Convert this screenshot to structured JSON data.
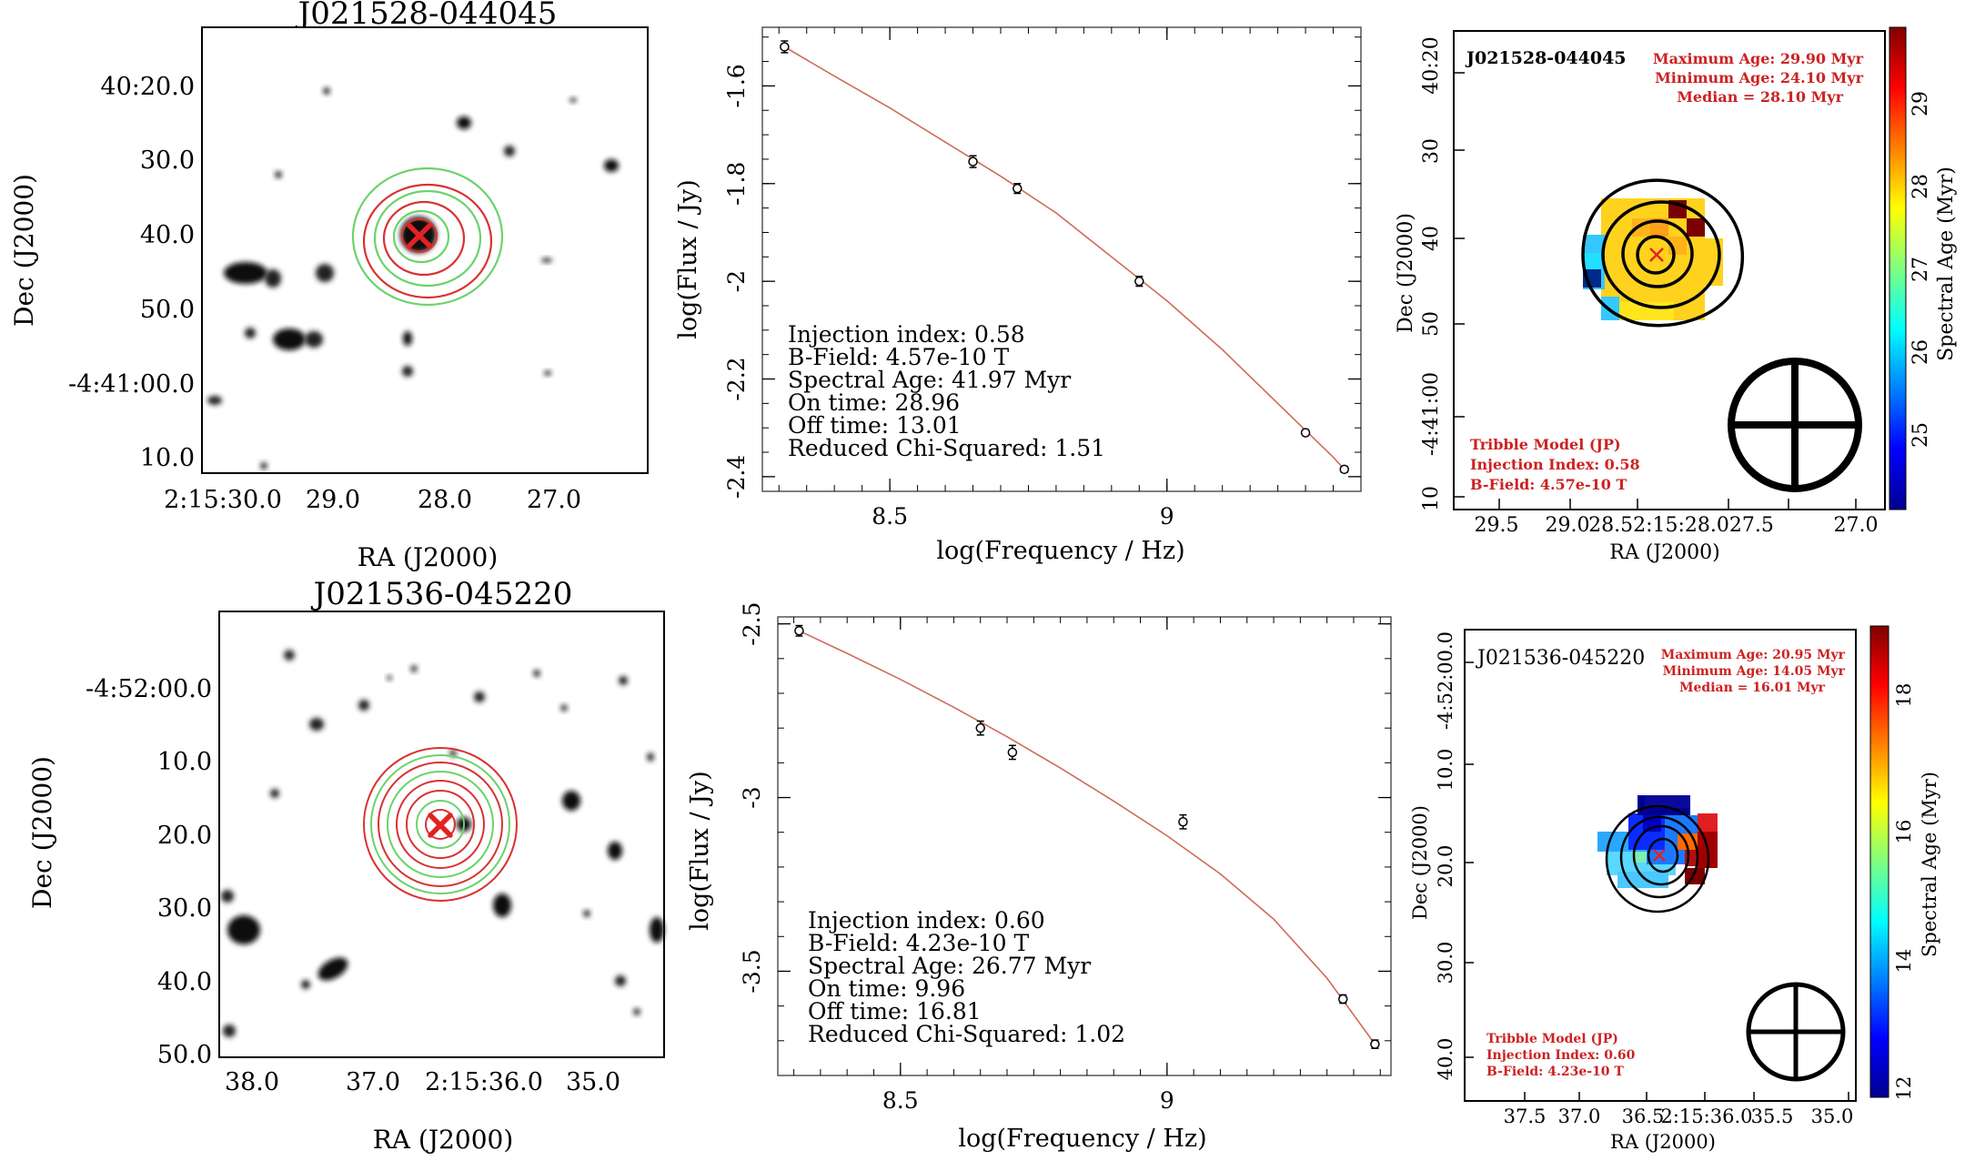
{
  "panels": [
    {
      "source": "J021528-044045",
      "image": {
        "title": "J021528-044045",
        "xlabel": "RA (J2000)",
        "ylabel": "Dec (J2000)",
        "xticks": [
          "2:15:30.0",
          "29.0",
          "28.0",
          "27.0"
        ],
        "yticks": [
          "40:20.0",
          "30.0",
          "40.0",
          "50.0",
          "-4:41:00.0",
          "10.0"
        ]
      },
      "sed": {
        "type": "line",
        "xlabel": "log(Frequency / Hz)",
        "ylabel": "log(Flux / Jy)",
        "xlim": [
          8.27,
          9.35
        ],
        "ylim": [
          -2.43,
          -1.48
        ],
        "xticks": [
          8.5,
          9
        ],
        "yticks": [
          -1.6,
          -1.8,
          -2,
          -2.2,
          -2.4
        ],
        "xtick_labels": [
          "8.5",
          "9"
        ],
        "ytick_labels": [
          "-1.6",
          "-1.8",
          "-2",
          "-2.2",
          "-2.4"
        ],
        "points": [
          {
            "x": 8.31,
            "y": -1.52,
            "err": 0.012
          },
          {
            "x": 8.65,
            "y": -1.755,
            "err": 0.012
          },
          {
            "x": 8.73,
            "y": -1.81,
            "err": 0.01
          },
          {
            "x": 8.95,
            "y": -2.0,
            "err": 0.01
          },
          {
            "x": 9.25,
            "y": -2.31,
            "err": 0.006
          },
          {
            "x": 9.32,
            "y": -2.385,
            "err": 0.006
          }
        ],
        "fit": [
          [
            8.31,
            -1.52
          ],
          [
            8.4,
            -1.58
          ],
          [
            8.5,
            -1.645
          ],
          [
            8.6,
            -1.715
          ],
          [
            8.7,
            -1.785
          ],
          [
            8.8,
            -1.86
          ],
          [
            8.9,
            -1.95
          ],
          [
            9.0,
            -2.04
          ],
          [
            9.1,
            -2.14
          ],
          [
            9.2,
            -2.25
          ],
          [
            9.3,
            -2.36
          ],
          [
            9.32,
            -2.385
          ]
        ],
        "fit_params": [
          "Injection index: 0.58",
          "B-Field: 4.57e-10 T",
          "Spectral Age: 41.97 Myr",
          "On time: 28.96",
          "Off time: 13.01",
          "Reduced Chi-Squared: 1.51"
        ]
      },
      "agemap": {
        "source_label": "J021528-044045",
        "stats": [
          "Maximum Age: 29.90 Myr",
          "Minimum Age: 24.10 Myr",
          "Median = 28.10 Myr"
        ],
        "model": [
          "Tribble Model (JP)",
          "Injection Index: 0.58",
          "B-Field: 4.57e-10 T"
        ],
        "xlabel": "RA (J2000)",
        "ylabel": "Dec (J2000)",
        "xticks": [
          "29.5",
          "29.0",
          "28.52:15:28.027.5",
          "27.0"
        ],
        "yticks": [
          "40:20",
          "30",
          "40",
          "50",
          "-4:41:00",
          "10"
        ],
        "colorbar_label": "Spectral Age (Myr)",
        "colorbar_ticks": [
          "25",
          "26",
          "27",
          "28",
          "29"
        ],
        "colorbar_range": [
          24.1,
          29.9
        ]
      }
    },
    {
      "source": "J021536-045220",
      "image": {
        "title": "J021536-045220",
        "xlabel": "RA (J2000)",
        "ylabel": "Dec (J2000)",
        "xticks": [
          "38.0",
          "37.0",
          "2:15:36.0",
          "35.0"
        ],
        "yticks": [
          "-4:52:00.0",
          "10.0",
          "20.0",
          "30.0",
          "40.0",
          "50.0"
        ]
      },
      "sed": {
        "type": "line",
        "xlabel": "log(Frequency / Hz)",
        "ylabel": "log(Flux / Jy)",
        "xlim": [
          8.27,
          9.42
        ],
        "ylim": [
          -3.8,
          -2.48
        ],
        "xticks": [
          8.5,
          9
        ],
        "yticks": [
          -2.5,
          -3,
          -3.5
        ],
        "xtick_labels": [
          "8.5",
          "9"
        ],
        "ytick_labels": [
          "-2.5",
          "-3",
          "-3.5"
        ],
        "points": [
          {
            "x": 8.31,
            "y": -2.52,
            "err": 0.015
          },
          {
            "x": 8.65,
            "y": -2.8,
            "err": 0.02
          },
          {
            "x": 8.71,
            "y": -2.87,
            "err": 0.02
          },
          {
            "x": 9.03,
            "y": -3.07,
            "err": 0.02
          },
          {
            "x": 9.33,
            "y": -3.58,
            "err": 0.012
          },
          {
            "x": 9.39,
            "y": -3.71,
            "err": 0.012
          }
        ],
        "fit": [
          [
            8.31,
            -2.52
          ],
          [
            8.4,
            -2.585
          ],
          [
            8.5,
            -2.66
          ],
          [
            8.6,
            -2.74
          ],
          [
            8.7,
            -2.825
          ],
          [
            8.8,
            -2.915
          ],
          [
            8.9,
            -3.01
          ],
          [
            9.0,
            -3.11
          ],
          [
            9.1,
            -3.22
          ],
          [
            9.2,
            -3.35
          ],
          [
            9.3,
            -3.52
          ],
          [
            9.39,
            -3.71
          ]
        ],
        "fit_params": [
          "Injection index: 0.60",
          "B-Field: 4.23e-10 T",
          "Spectral Age: 26.77 Myr",
          "On time: 9.96",
          "Off time: 16.81",
          "Reduced Chi-Squared: 1.02"
        ]
      },
      "agemap": {
        "source_label": "J021536-045220",
        "stats": [
          "Maximum Age: 20.95 Myr",
          "Minimum Age: 14.05 Myr",
          "Median = 16.01 Myr"
        ],
        "model": [
          "Tribble Model (JP)",
          "Injection Index: 0.60",
          "B-Field: 4.23e-10 T"
        ],
        "xlabel": "RA (J2000)",
        "ylabel": "Dec (J2000)",
        "xticks": [
          "37.5",
          "37.0",
          "36.5",
          "2:15:36.0",
          "35.5",
          "35.0"
        ],
        "yticks": [
          "-4:52:00.0",
          "10.0",
          "20.0",
          "30.0",
          "40.0"
        ],
        "colorbar_label": "Spectral Age (Myr)",
        "colorbar_ticks": [
          "12",
          "14",
          "16",
          "18"
        ],
        "colorbar_range": [
          12,
          19
        ]
      }
    }
  ],
  "chart_data": [
    {
      "type": "scatter",
      "xlabel": "log(Frequency / Hz)",
      "ylabel": "log(Flux / Jy)",
      "x": [
        8.31,
        8.65,
        8.73,
        8.95,
        9.25,
        9.32
      ],
      "y": [
        -1.52,
        -1.755,
        -1.81,
        -2.0,
        -2.31,
        -2.385
      ]
    },
    {
      "type": "scatter",
      "xlabel": "log(Frequency / Hz)",
      "ylabel": "log(Flux / Jy)",
      "x": [
        8.31,
        8.65,
        8.71,
        9.03,
        9.33,
        9.39
      ],
      "y": [
        -2.52,
        -2.8,
        -2.87,
        -3.07,
        -3.58,
        -3.71
      ]
    }
  ]
}
